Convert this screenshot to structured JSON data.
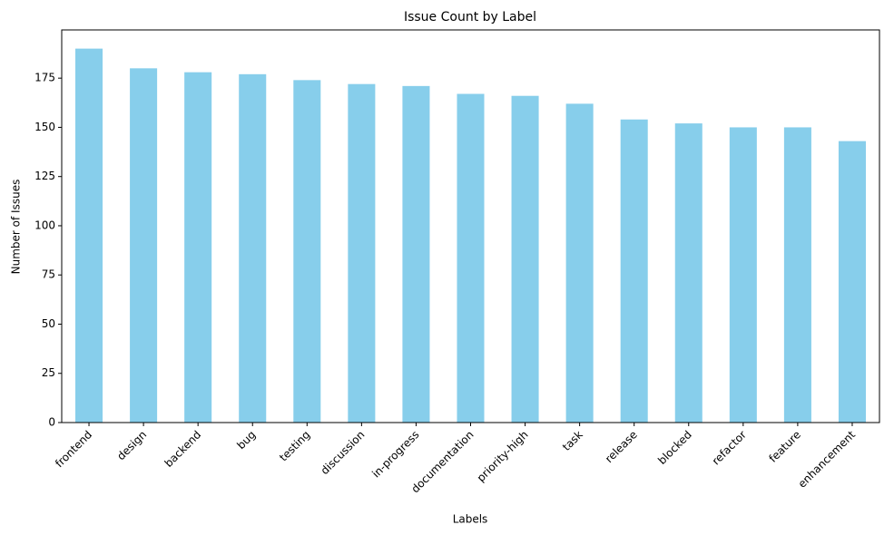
{
  "chart_data": {
    "type": "bar",
    "title": "Issue Count by Label",
    "x_label": "Labels",
    "y_label": "Number of Issues",
    "categories": [
      "frontend",
      "design",
      "backend",
      "bug",
      "testing",
      "discussion",
      "in-progress",
      "documentation",
      "priority-high",
      "task",
      "release",
      "blocked",
      "refactor",
      "feature",
      "enhancement"
    ],
    "values": [
      190,
      180,
      178,
      177,
      174,
      172,
      171,
      167,
      166,
      162,
      154,
      152,
      150,
      150,
      143
    ],
    "color": "#87ceeb",
    "ylim": [
      0,
      199.5
    ],
    "yticks": [
      0,
      25,
      50,
      75,
      100,
      125,
      150,
      175
    ],
    "grid": false
  }
}
